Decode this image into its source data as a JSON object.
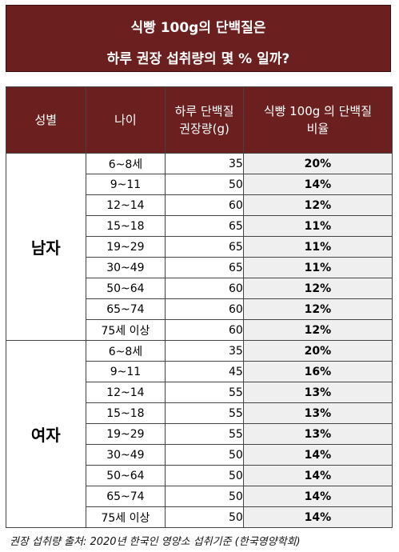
{
  "title": {
    "line1": "식빵 100g의 단백질은",
    "line2": "하루 권장 섭취량의 몇 % 일까?"
  },
  "table": {
    "headers": {
      "gender": "성별",
      "age": "나이",
      "requirement_line1": "하루 단백질",
      "requirement_line2": "권장량(g)",
      "ratio_line1": "식빵 100g 의 단백질",
      "ratio_line2": "비율"
    },
    "groups": [
      {
        "gender": "남자",
        "rows": [
          {
            "age": "6~8세",
            "req": "35",
            "ratio": "20%"
          },
          {
            "age": "9~11",
            "req": "50",
            "ratio": "14%"
          },
          {
            "age": "12~14",
            "req": "60",
            "ratio": "12%"
          },
          {
            "age": "15~18",
            "req": "65",
            "ratio": "11%"
          },
          {
            "age": "19~29",
            "req": "65",
            "ratio": "11%"
          },
          {
            "age": "30~49",
            "req": "65",
            "ratio": "11%"
          },
          {
            "age": "50~64",
            "req": "60",
            "ratio": "12%"
          },
          {
            "age": "65~74",
            "req": "60",
            "ratio": "12%"
          },
          {
            "age": "75세 이상",
            "req": "60",
            "ratio": "12%"
          }
        ]
      },
      {
        "gender": "여자",
        "rows": [
          {
            "age": "6~8세",
            "req": "35",
            "ratio": "20%"
          },
          {
            "age": "9~11",
            "req": "45",
            "ratio": "16%"
          },
          {
            "age": "12~14",
            "req": "55",
            "ratio": "13%"
          },
          {
            "age": "15~18",
            "req": "55",
            "ratio": "13%"
          },
          {
            "age": "19~29",
            "req": "55",
            "ratio": "13%"
          },
          {
            "age": "30~49",
            "req": "50",
            "ratio": "14%"
          },
          {
            "age": "50~64",
            "req": "50",
            "ratio": "14%"
          },
          {
            "age": "65~74",
            "req": "50",
            "ratio": "14%"
          },
          {
            "age": "75세 이상",
            "req": "50",
            "ratio": "14%"
          }
        ]
      }
    ]
  },
  "source": "권장 섭취량 출처: 2020년 한국인 영양소 섭취기준 (한국영양학회)",
  "colors": {
    "header_bg": "#6b1f1f",
    "ratio_bg": "#efefef"
  }
}
